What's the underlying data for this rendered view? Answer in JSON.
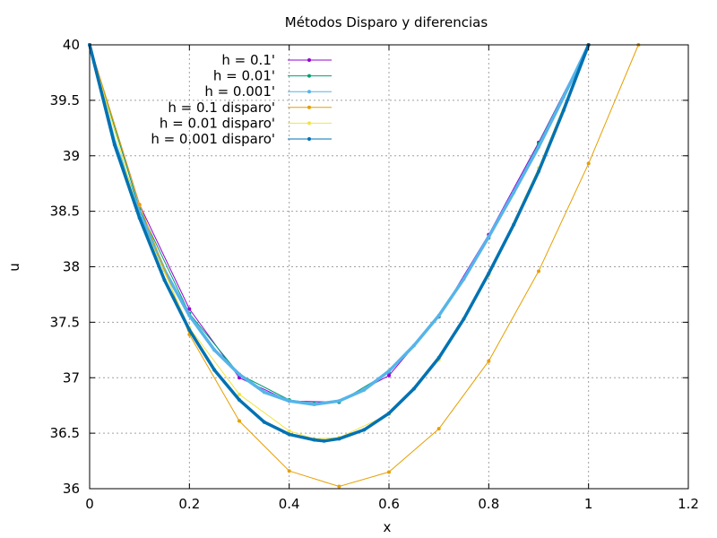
{
  "chart_data": {
    "type": "line",
    "title": "Métodos Disparo y diferencias",
    "xlabel": "x",
    "ylabel": "u",
    "xlim": [
      0,
      1.2
    ],
    "ylim": [
      36,
      40
    ],
    "x_ticks": [
      "0",
      "0.2",
      "0.4",
      "0.6",
      "0.8",
      "1",
      "1.2"
    ],
    "y_ticks": [
      "36",
      "36.5",
      "37",
      "37.5",
      "38",
      "38.5",
      "39",
      "39.5",
      "40"
    ],
    "grid": true,
    "legend_position": "top-left",
    "series": [
      {
        "name": "h = 0.1'",
        "color": "#9400d3",
        "marker": "dot",
        "x": [
          0,
          0.1,
          0.2,
          0.3,
          0.4,
          0.5,
          0.6,
          0.7,
          0.8,
          0.9,
          1.0
        ],
        "y": [
          40,
          38.56,
          37.62,
          37.0,
          36.79,
          36.78,
          37.02,
          37.55,
          38.29,
          39.12,
          40
        ]
      },
      {
        "name": "h = 0.01'",
        "color": "#009e73",
        "marker": "dot",
        "x": [
          0,
          0.1,
          0.2,
          0.3,
          0.4,
          0.45,
          0.5,
          0.6,
          0.7,
          0.8,
          0.9,
          1.0
        ],
        "y": [
          40,
          38.52,
          37.58,
          37.03,
          36.8,
          36.77,
          36.78,
          37.05,
          37.55,
          38.26,
          39.11,
          40
        ]
      },
      {
        "name": "h = 0.001'",
        "color": "#56b4e9",
        "marker": "dot",
        "x": [
          0,
          0.05,
          0.1,
          0.15,
          0.2,
          0.25,
          0.3,
          0.35,
          0.4,
          0.45,
          0.5,
          0.55,
          0.6,
          0.65,
          0.7,
          0.75,
          0.8,
          0.85,
          0.9,
          0.95,
          1.0
        ],
        "y": [
          40,
          39.12,
          38.49,
          37.97,
          37.56,
          37.25,
          37.03,
          36.87,
          36.79,
          36.76,
          36.79,
          36.89,
          37.06,
          37.29,
          37.56,
          37.89,
          38.27,
          38.67,
          39.08,
          39.53,
          40
        ]
      },
      {
        "name": "h = 0.1 disparo'",
        "color": "#e69f00",
        "marker": "dot",
        "x": [
          0,
          0.1,
          0.2,
          0.3,
          0.4,
          0.5,
          0.6,
          0.7,
          0.8,
          0.9,
          1.0,
          1.1
        ],
        "y": [
          40,
          38.56,
          37.39,
          36.61,
          36.16,
          36.02,
          36.15,
          36.54,
          37.15,
          37.96,
          38.93,
          40
        ]
      },
      {
        "name": "h = 0.01 disparo'",
        "color": "#f0e442",
        "marker": "dot",
        "x": [
          0,
          0.1,
          0.2,
          0.3,
          0.4,
          0.45,
          0.5,
          0.6,
          0.7,
          0.8,
          0.9,
          1.0
        ],
        "y": [
          40,
          38.45,
          37.45,
          36.85,
          36.52,
          36.45,
          36.46,
          36.67,
          37.16,
          37.92,
          38.89,
          40
        ]
      },
      {
        "name": "h = 0.001 disparo'",
        "color": "#0072b2",
        "marker": "dot",
        "x": [
          0,
          0.05,
          0.1,
          0.15,
          0.2,
          0.25,
          0.3,
          0.35,
          0.4,
          0.45,
          0.47,
          0.5,
          0.55,
          0.6,
          0.65,
          0.7,
          0.75,
          0.8,
          0.85,
          0.9,
          0.95,
          1.0
        ],
        "y": [
          40,
          39.1,
          38.44,
          37.88,
          37.43,
          37.07,
          36.8,
          36.6,
          36.49,
          36.44,
          36.43,
          36.45,
          36.53,
          36.68,
          36.9,
          37.18,
          37.53,
          37.94,
          38.38,
          38.86,
          39.41,
          40
        ]
      }
    ]
  }
}
